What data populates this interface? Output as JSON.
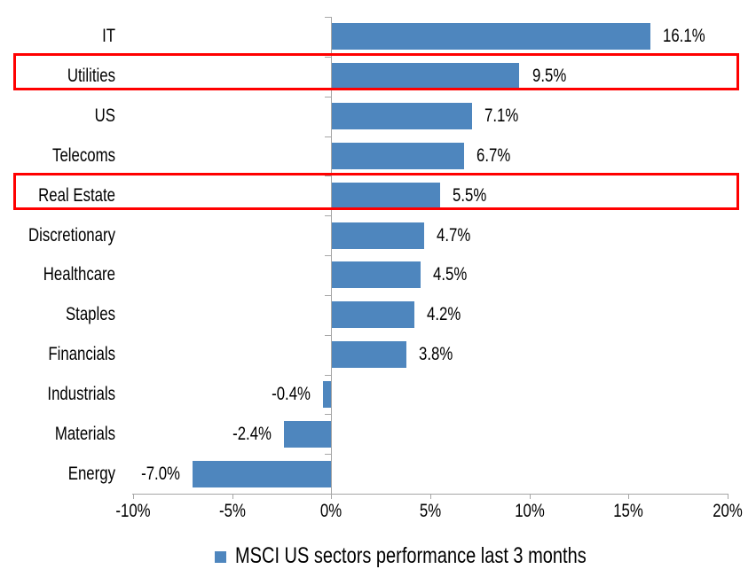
{
  "chart_data": {
    "type": "bar",
    "orientation": "horizontal",
    "categories": [
      "IT",
      "Utilities",
      "US",
      "Telecoms",
      "Real Estate",
      "Discretionary",
      "Healthcare",
      "Staples",
      "Financials",
      "Industrials",
      "Materials",
      "Energy"
    ],
    "values": [
      16.1,
      9.5,
      7.1,
      6.7,
      5.5,
      4.7,
      4.5,
      4.2,
      3.8,
      -0.4,
      -2.4,
      -7.0
    ],
    "value_labels": [
      "16.1%",
      "9.5%",
      "7.1%",
      "6.7%",
      "5.5%",
      "4.7%",
      "4.5%",
      "4.2%",
      "3.8%",
      "-0.4%",
      "-2.4%",
      "-7.0%"
    ],
    "x_ticks": [
      {
        "value": -10,
        "label": "-10%"
      },
      {
        "value": -5,
        "label": "-5%"
      },
      {
        "value": 0,
        "label": "0%"
      },
      {
        "value": 5,
        "label": "5%"
      },
      {
        "value": 10,
        "label": "10%"
      },
      {
        "value": 15,
        "label": "15%"
      },
      {
        "value": 20,
        "label": "20%"
      }
    ],
    "xlim": [
      -10,
      20
    ],
    "grid": false,
    "legend": {
      "position": "bottom",
      "label": "MSCI US sectors performance last 3 months"
    },
    "highlighted_categories": [
      "Utilities",
      "Real Estate"
    ],
    "colors": {
      "bar": "#4E86BE",
      "axis": "#A6A6A6",
      "highlight": "#FF0000",
      "text": "#000000"
    }
  }
}
